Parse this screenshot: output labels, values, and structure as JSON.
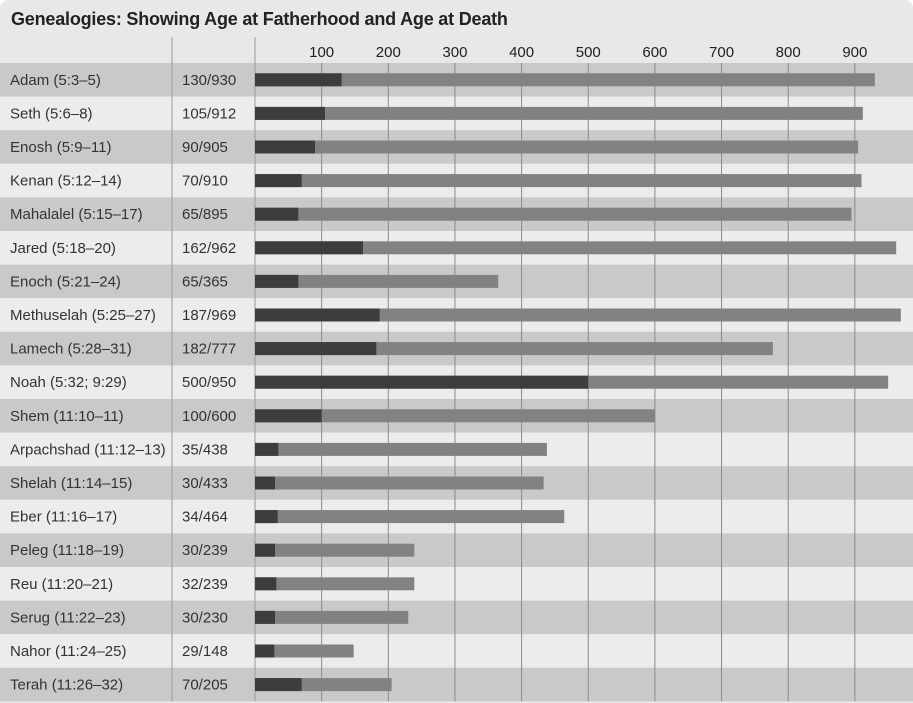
{
  "chart_data": {
    "type": "bar",
    "title": "Genealogies: Showing Age at Fatherhood and Age at Death",
    "xticks": [
      100,
      200,
      300,
      400,
      500,
      600,
      700,
      800,
      900
    ],
    "xlim": [
      0,
      980
    ],
    "series_names": [
      "Age at Fatherhood",
      "Age at Death"
    ],
    "colors": {
      "fatherhood": "#3d3d3d",
      "death": "#828282",
      "row_dark": "#c9c9c9",
      "row_light": "#ececec",
      "grid": "#8a8a8a",
      "header_bg": "#e8e8e8"
    },
    "rows": [
      {
        "name": "Adam (5:3–5)",
        "label": "130/930",
        "fatherhood": 130,
        "death": 930
      },
      {
        "name": "Seth (5:6–8)",
        "label": "105/912",
        "fatherhood": 105,
        "death": 912
      },
      {
        "name": "Enosh (5:9–11)",
        "label": "90/905",
        "fatherhood": 90,
        "death": 905
      },
      {
        "name": "Kenan (5:12–14)",
        "label": "70/910",
        "fatherhood": 70,
        "death": 910
      },
      {
        "name": "Mahalalel (5:15–17)",
        "label": "65/895",
        "fatherhood": 65,
        "death": 895
      },
      {
        "name": "Jared (5:18–20)",
        "label": "162/962",
        "fatherhood": 162,
        "death": 962
      },
      {
        "name": "Enoch (5:21–24)",
        "label": "65/365",
        "fatherhood": 65,
        "death": 365
      },
      {
        "name": "Methuselah (5:25–27)",
        "label": "187/969",
        "fatherhood": 187,
        "death": 969
      },
      {
        "name": "Lamech (5:28–31)",
        "label": "182/777",
        "fatherhood": 182,
        "death": 777
      },
      {
        "name": "Noah (5:32; 9:29)",
        "label": "500/950",
        "fatherhood": 500,
        "death": 950
      },
      {
        "name": "Shem (11:10–11)",
        "label": "100/600",
        "fatherhood": 100,
        "death": 600
      },
      {
        "name": "Arpachshad (11:12–13)",
        "label": "35/438",
        "fatherhood": 35,
        "death": 438
      },
      {
        "name": "Shelah (11:14–15)",
        "label": "30/433",
        "fatherhood": 30,
        "death": 433
      },
      {
        "name": "Eber (11:16–17)",
        "label": "34/464",
        "fatherhood": 34,
        "death": 464
      },
      {
        "name": "Peleg (11:18–19)",
        "label": "30/239",
        "fatherhood": 30,
        "death": 239
      },
      {
        "name": "Reu (11:20–21)",
        "label": "32/239",
        "fatherhood": 32,
        "death": 239
      },
      {
        "name": "Serug (11:22–23)",
        "label": "30/230",
        "fatherhood": 30,
        "death": 230
      },
      {
        "name": "Nahor (11:24–25)",
        "label": "29/148",
        "fatherhood": 29,
        "death": 148
      },
      {
        "name": "Terah (11:26–32)",
        "label": "70/205",
        "fatherhood": 70,
        "death": 205
      }
    ]
  }
}
